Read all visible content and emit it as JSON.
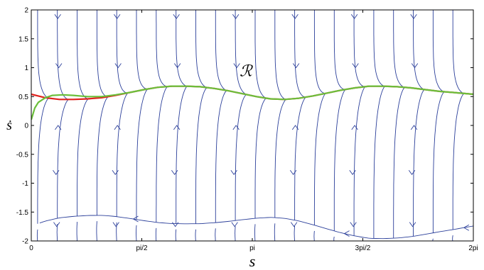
{
  "chart_data": {
    "type": "line",
    "title": "",
    "xlabel": "s",
    "ylabel": "ṡ",
    "xlim": [
      0,
      6.2832
    ],
    "ylim": [
      -2,
      2
    ],
    "xticks": [
      {
        "value": 0,
        "label": "0"
      },
      {
        "value": 1.5708,
        "label": "pi/2"
      },
      {
        "value": 3.1416,
        "label": "pi"
      },
      {
        "value": 4.7124,
        "label": "3pi/2"
      },
      {
        "value": 6.2832,
        "label": "2pi"
      }
    ],
    "yticks": [
      {
        "value": 2,
        "label": "2"
      },
      {
        "value": 1.5,
        "label": "1.5"
      },
      {
        "value": 1,
        "label": "1"
      },
      {
        "value": 0.5,
        "label": "0.5"
      },
      {
        "value": 0,
        "label": "0"
      },
      {
        "value": -0.5,
        "label": "-0.5"
      },
      {
        "value": -1,
        "label": "-1"
      },
      {
        "value": -1.5,
        "label": "-1.5"
      },
      {
        "value": -2,
        "label": "-2"
      }
    ],
    "annotation": {
      "text": "ℛ",
      "x": 3.05,
      "y": 0.85
    },
    "colors": {
      "streamlines": "#2b3f9a",
      "red_curve": "#e0221e",
      "green_curve": "#6bbf3a"
    },
    "series": [
      {
        "x": [
          0,
          0.2,
          0.4,
          0.6,
          0.8,
          1.0,
          1.2,
          1.4,
          1.6,
          1.8,
          2.0,
          2.2,
          2.4,
          2.6,
          2.8,
          3.0,
          3.2,
          3.4,
          3.6,
          3.8,
          4.0,
          4.2,
          4.4,
          4.6,
          4.8,
          5.0,
          5.2,
          5.4,
          5.6,
          5.8,
          6.0,
          6.2832
        ],
        "y": [
          0.54,
          0.48,
          0.45,
          0.45,
          0.46,
          0.48,
          0.52,
          0.57,
          0.62,
          0.66,
          0.68,
          0.68,
          0.67,
          0.64,
          0.6,
          0.55,
          0.5,
          0.46,
          0.45,
          0.47,
          0.51,
          0.56,
          0.61,
          0.65,
          0.68,
          0.68,
          0.67,
          0.65,
          0.62,
          0.59,
          0.57,
          0.54
        ]
      },
      {
        "x": [
          0,
          0.02,
          0.05,
          0.1,
          0.2,
          0.3,
          0.45,
          0.6,
          0.8,
          1.0,
          1.2,
          1.4,
          1.6,
          1.8,
          2.0,
          2.2,
          2.4,
          2.6,
          2.8,
          3.0,
          3.2,
          3.4,
          3.6,
          3.8,
          4.0,
          4.2,
          4.4,
          4.6,
          4.8,
          5.0,
          5.2,
          5.4,
          5.6,
          5.8,
          6.0,
          6.2832
        ],
        "y": [
          0.1,
          0.18,
          0.3,
          0.4,
          0.48,
          0.52,
          0.53,
          0.52,
          0.5,
          0.5,
          0.53,
          0.57,
          0.62,
          0.66,
          0.68,
          0.68,
          0.67,
          0.64,
          0.6,
          0.55,
          0.5,
          0.46,
          0.45,
          0.47,
          0.51,
          0.56,
          0.61,
          0.65,
          0.68,
          0.68,
          0.67,
          0.65,
          0.62,
          0.59,
          0.57,
          0.54
        ]
      }
    ]
  }
}
